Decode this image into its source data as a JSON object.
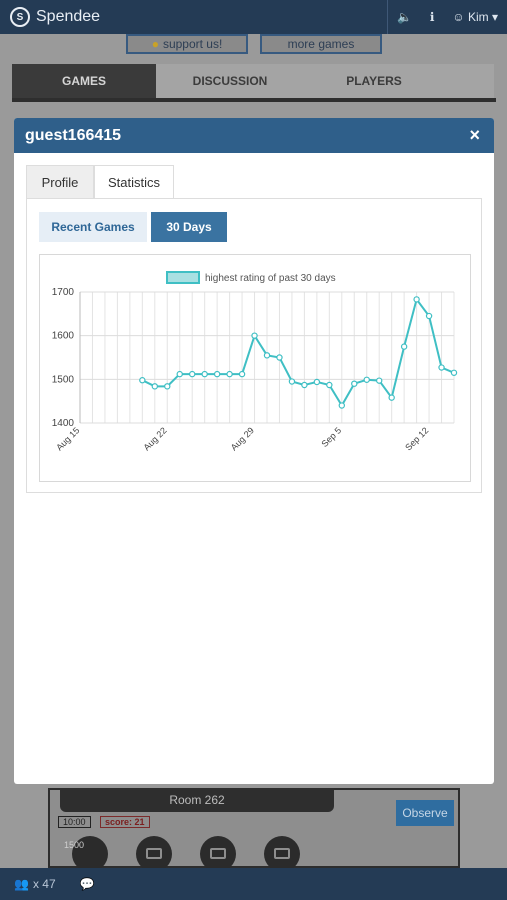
{
  "app": {
    "name": "Spendee",
    "user": "Kim"
  },
  "top_buttons": {
    "support": "support us!",
    "more_games": "more games"
  },
  "bg_tabs": [
    "GAMES",
    "DISCUSSION",
    "PLAYERS"
  ],
  "modal": {
    "title": "guest166415",
    "close_label": "×",
    "tabs": [
      "Profile",
      "Statistics"
    ],
    "active_tab": "Statistics",
    "pills": [
      "Recent Games",
      "30 Days"
    ],
    "active_pill": "30 Days"
  },
  "chart_data": {
    "type": "line",
    "legend": "highest rating of past 30 days",
    "x_ticks": [
      "Aug 15",
      "Aug 22",
      "Aug 29",
      "Sep 5",
      "Sep 12"
    ],
    "ylim": [
      1400,
      1700
    ],
    "y_ticks": [
      1400,
      1500,
      1600,
      1700
    ],
    "grid": true,
    "color": "#3fbfc4",
    "series": [
      {
        "x": [
          "Aug 20",
          "Aug 21",
          "Aug 22",
          "Aug 23",
          "Aug 24",
          "Aug 25",
          "Aug 26",
          "Aug 27",
          "Aug 28",
          "Aug 29",
          "Aug 30",
          "Aug 31",
          "Sep 1",
          "Sep 2",
          "Sep 3",
          "Sep 4",
          "Sep 5",
          "Sep 6",
          "Sep 7",
          "Sep 8",
          "Sep 9",
          "Sep 10",
          "Sep 11",
          "Sep 12",
          "Sep 13",
          "Sep 14"
        ],
        "values": [
          1498,
          1484,
          1484,
          1512,
          1512,
          1512,
          1512,
          1512,
          1512,
          1600,
          1555,
          1550,
          1495,
          1487,
          1494,
          1487,
          1440,
          1490,
          1499,
          1497,
          1458,
          1575,
          1683,
          1645,
          1527,
          1515
        ]
      }
    ]
  },
  "room": {
    "title": "Room 262",
    "observe_label": "Observe",
    "time": "10:00",
    "score": "score: 21",
    "seat_rating": "1500"
  },
  "bottom": {
    "users": "x 47"
  }
}
